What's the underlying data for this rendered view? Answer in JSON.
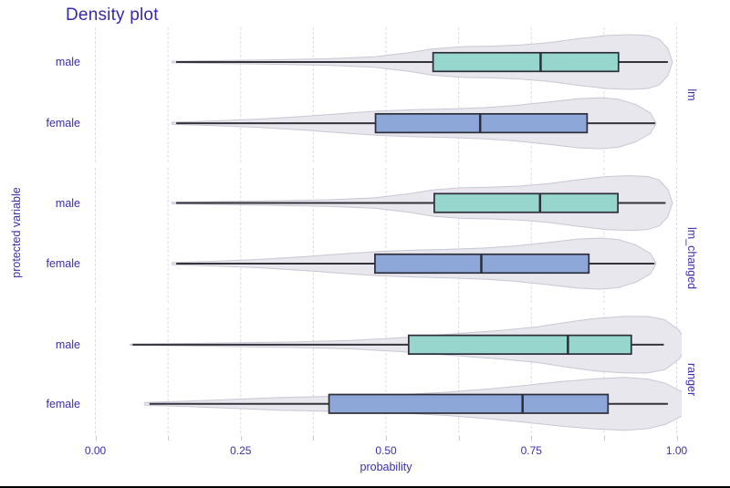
{
  "title": "Density plot",
  "axes": {
    "x_label": "probability",
    "y_label": "protected variable",
    "x_tick_labels": [
      "0.00",
      "0.25",
      "0.50",
      "0.75",
      "1.00"
    ],
    "x_tick_values": [
      0,
      0.25,
      0.5,
      0.75,
      1
    ],
    "x_minor_tick_values": [
      0.125,
      0.375,
      0.625,
      0.875
    ],
    "x_range": [
      0,
      1
    ]
  },
  "colors": {
    "male_fill": "#96d6cd",
    "female_fill": "#8ca7d8",
    "violin_fill": "#e8e7ee",
    "violin_stroke": "#c9c7d4",
    "box_stroke": "#2e2e38",
    "whisker": "#33333c",
    "grid": "#dddce6",
    "tick": "#c8c7d2",
    "text": "#3b2fa8"
  },
  "chart_data": {
    "type": "violin-box-facets",
    "orientation": "horizontal",
    "title": "Density plot",
    "xlabel": "probability",
    "ylabel": "protected variable",
    "xlim": [
      0,
      1
    ],
    "grid": true,
    "facets": [
      {
        "name": "lm",
        "rows": [
          {
            "label": "male",
            "fill": "male_fill",
            "box": {
              "min": 0.139,
              "q1": 0.581,
              "median": 0.766,
              "q3": 0.9,
              "max": 0.985
            },
            "density": [
              [
                0.132,
                0.03
              ],
              [
                0.2,
                0.05
              ],
              [
                0.3,
                0.08
              ],
              [
                0.4,
                0.12
              ],
              [
                0.48,
                0.19
              ],
              [
                0.54,
                0.34
              ],
              [
                0.58,
                0.48
              ],
              [
                0.63,
                0.56
              ],
              [
                0.68,
                0.58
              ],
              [
                0.73,
                0.62
              ],
              [
                0.78,
                0.71
              ],
              [
                0.83,
                0.85
              ],
              [
                0.88,
                0.97
              ],
              [
                0.92,
                1.0
              ],
              [
                0.95,
                0.97
              ],
              [
                0.97,
                0.84
              ],
              [
                0.985,
                0.5
              ],
              [
                0.993,
                0.0
              ]
            ]
          },
          {
            "label": "female",
            "fill": "female_fill",
            "box": {
              "min": 0.139,
              "q1": 0.482,
              "median": 0.662,
              "q3": 0.846,
              "max": 0.963
            },
            "density": [
              [
                0.132,
                0.04
              ],
              [
                0.2,
                0.09
              ],
              [
                0.28,
                0.16
              ],
              [
                0.36,
                0.27
              ],
              [
                0.43,
                0.39
              ],
              [
                0.49,
                0.48
              ],
              [
                0.55,
                0.53
              ],
              [
                0.61,
                0.56
              ],
              [
                0.67,
                0.61
              ],
              [
                0.72,
                0.69
              ],
              [
                0.78,
                0.83
              ],
              [
                0.83,
                0.96
              ],
              [
                0.87,
                1.0
              ],
              [
                0.9,
                0.94
              ],
              [
                0.93,
                0.73
              ],
              [
                0.955,
                0.4
              ],
              [
                0.965,
                0.0
              ]
            ]
          }
        ]
      },
      {
        "name": "lm_changed",
        "rows": [
          {
            "label": "male",
            "fill": "male_fill",
            "box": {
              "min": 0.139,
              "q1": 0.583,
              "median": 0.765,
              "q3": 0.899,
              "max": 0.981
            },
            "density": [
              [
                0.132,
                0.03
              ],
              [
                0.2,
                0.05
              ],
              [
                0.3,
                0.08
              ],
              [
                0.4,
                0.12
              ],
              [
                0.48,
                0.19
              ],
              [
                0.54,
                0.34
              ],
              [
                0.58,
                0.48
              ],
              [
                0.63,
                0.56
              ],
              [
                0.68,
                0.58
              ],
              [
                0.73,
                0.62
              ],
              [
                0.78,
                0.71
              ],
              [
                0.83,
                0.85
              ],
              [
                0.88,
                0.97
              ],
              [
                0.92,
                1.0
              ],
              [
                0.95,
                0.97
              ],
              [
                0.97,
                0.84
              ],
              [
                0.985,
                0.5
              ],
              [
                0.993,
                0.0
              ]
            ]
          },
          {
            "label": "female",
            "fill": "female_fill",
            "box": {
              "min": 0.139,
              "q1": 0.481,
              "median": 0.664,
              "q3": 0.849,
              "max": 0.962
            },
            "density": [
              [
                0.132,
                0.04
              ],
              [
                0.2,
                0.09
              ],
              [
                0.28,
                0.16
              ],
              [
                0.36,
                0.27
              ],
              [
                0.43,
                0.39
              ],
              [
                0.49,
                0.48
              ],
              [
                0.55,
                0.53
              ],
              [
                0.61,
                0.56
              ],
              [
                0.67,
                0.61
              ],
              [
                0.72,
                0.69
              ],
              [
                0.78,
                0.83
              ],
              [
                0.83,
                0.96
              ],
              [
                0.87,
                1.0
              ],
              [
                0.9,
                0.94
              ],
              [
                0.93,
                0.73
              ],
              [
                0.955,
                0.4
              ],
              [
                0.965,
                0.0
              ]
            ]
          }
        ]
      },
      {
        "name": "ranger",
        "rows": [
          {
            "label": "male",
            "fill": "male_fill",
            "box": {
              "min": 0.064,
              "q1": 0.539,
              "median": 0.813,
              "q3": 0.922,
              "max": 0.978
            },
            "density": [
              [
                0.06,
                0.02
              ],
              [
                0.15,
                0.04
              ],
              [
                0.25,
                0.07
              ],
              [
                0.35,
                0.1
              ],
              [
                0.44,
                0.15
              ],
              [
                0.52,
                0.24
              ],
              [
                0.58,
                0.33
              ],
              [
                0.64,
                0.42
              ],
              [
                0.7,
                0.51
              ],
              [
                0.76,
                0.63
              ],
              [
                0.81,
                0.79
              ],
              [
                0.86,
                0.93
              ],
              [
                0.91,
                1.0
              ],
              [
                0.95,
                1.0
              ],
              [
                0.98,
                0.88
              ],
              [
                1.005,
                0.5
              ],
              [
                1.018,
                0.0
              ]
            ]
          },
          {
            "label": "female",
            "fill": "female_fill",
            "box": {
              "min": 0.093,
              "q1": 0.402,
              "median": 0.735,
              "q3": 0.882,
              "max": 0.985
            },
            "density": [
              [
                0.085,
                0.05
              ],
              [
                0.16,
                0.1
              ],
              [
                0.24,
                0.17
              ],
              [
                0.32,
                0.24
              ],
              [
                0.4,
                0.28
              ],
              [
                0.47,
                0.31
              ],
              [
                0.54,
                0.36
              ],
              [
                0.61,
                0.45
              ],
              [
                0.68,
                0.57
              ],
              [
                0.74,
                0.7
              ],
              [
                0.8,
                0.84
              ],
              [
                0.86,
                0.95
              ],
              [
                0.91,
                1.0
              ],
              [
                0.95,
                0.94
              ],
              [
                0.98,
                0.78
              ],
              [
                1.01,
                0.45
              ],
              [
                1.025,
                0.0
              ]
            ]
          }
        ]
      }
    ]
  }
}
